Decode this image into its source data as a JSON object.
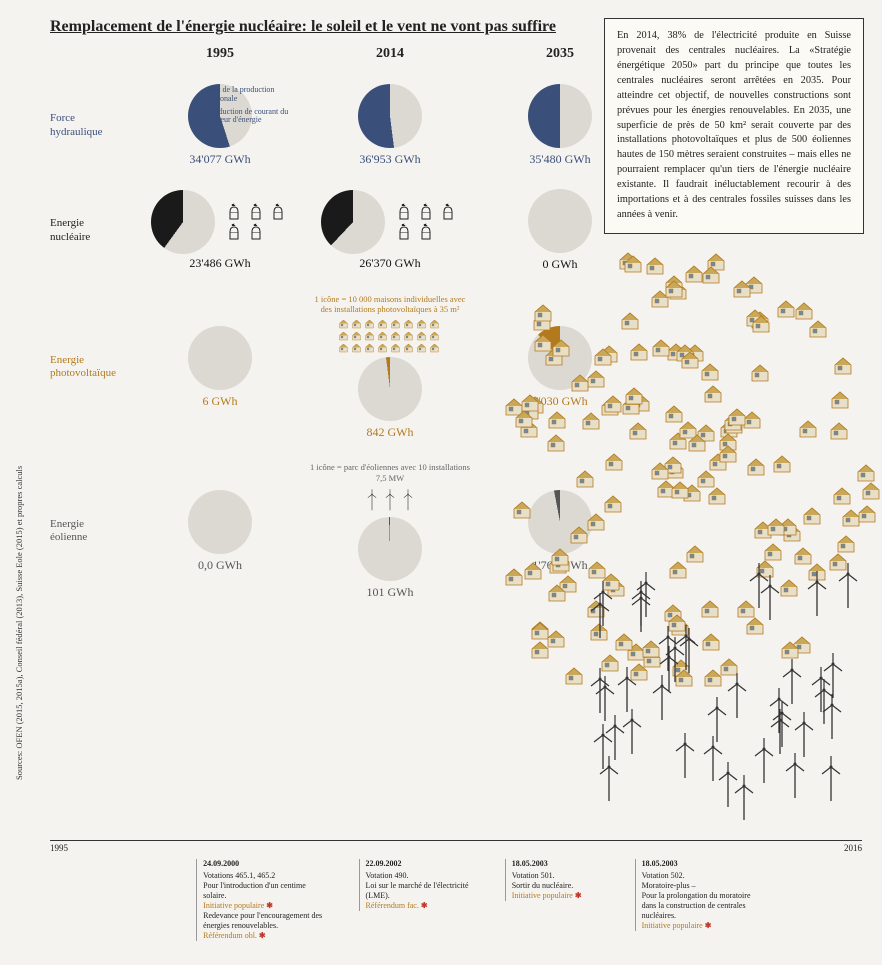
{
  "title": "Remplacement de l'énergie nucléaire: le soleil et le vent ne vont pas suffire",
  "textbox": "En 2014, 38% de l'électricité produite en Suisse provenait des centrales nucléaires. La «Stratégie énergétique 2050» part du principe que toutes les centrales nucléaires seront arrêtées en 2035. Pour atteindre cet objectif, de nouvelles constructions sont prévues pour les énergies renouvelables. En 2035, une superficie de près de 50 km² serait couverte par des installations photovoltaïques et plus de 500 éoliennes hautes de 150 mètres seraient construites – mais elles ne pourraient remplacer qu'un tiers de l'énergie nucléaire existante. Il faudrait inéluctablement recourir à des importations et à des centrales fossiles suisses dans les années à venir.",
  "years": [
    "1995",
    "2014",
    "2035"
  ],
  "colors": {
    "bg_grey": "#dcd9d2",
    "hydro": "#3a4f7a",
    "nuke": "#1a1a1a",
    "pv": "#b37a1d",
    "wind": "#555555",
    "page_bg": "#f5f3ef"
  },
  "rows": {
    "hydro": {
      "label": "Force\nhydraulique",
      "legend1": "part de la production nationale",
      "legend2": "production de courant du secteur d'énergie",
      "cells": [
        {
          "value": "34'077 GWh",
          "pct": 55
        },
        {
          "value": "36'953 GWh",
          "pct": 52
        },
        {
          "value": "35'480 GWh",
          "pct": 50
        }
      ]
    },
    "nuke": {
      "label": "Energie\nnucléaire",
      "cells": [
        {
          "value": "23'486 GWh",
          "pct": 40,
          "plants": 5
        },
        {
          "value": "26'370 GWh",
          "pct": 38,
          "plants": 5
        },
        {
          "value": "0 GWh",
          "pct": 0,
          "plants": 0
        }
      ]
    },
    "pv": {
      "label": "Energie\nphotovoltaïque",
      "note": "1 icône = 10 000 maisons individuelles avec des installations photovoltaïques à 35 m²",
      "cells": [
        {
          "value": "6 GWh",
          "pct": 0.1
        },
        {
          "value": "842 GWh",
          "pct": 2
        },
        {
          "value": "7'030 GWh",
          "pct": 12
        }
      ]
    },
    "wind": {
      "label": "Energie\néolienne",
      "note": "1 icône = parc d'éoliennes avec 10 installations 7,5 MW",
      "cells": [
        {
          "value": "0,0 GWh",
          "pct": 0
        },
        {
          "value": "101 GWh",
          "pct": 0.5
        },
        {
          "value": "1'760 GWh",
          "pct": 3
        }
      ]
    }
  },
  "source": "Sources: OFEN (2015, 2015a), Conseil fédéral (2013), Suisse Eole (2015) et propres calculs",
  "timeline": {
    "start": "1995",
    "end": "2016",
    "events": [
      {
        "left_pct": 18,
        "date": "24.09.2000",
        "lines": [
          "Votations 465.1, 465.2",
          "Pour l'introduction d'un centime solaire.",
          "Initiative populaire ✱",
          "Redevance pour l'encouragement des énergies renouvelables.",
          "Référendum obl. ✱"
        ]
      },
      {
        "left_pct": 38,
        "date": "22.09.2002",
        "lines": [
          "Votation 490.",
          "Loi sur le marché de l'électricité (LME).",
          "Référendum fac. ✱"
        ]
      },
      {
        "left_pct": 56,
        "date": "18.05.2003",
        "lines": [
          "Votation 501.",
          "Sortir du nucléaire.",
          "Initiative populaire ✱"
        ]
      },
      {
        "left_pct": 72,
        "date": "18.05.2003",
        "lines": [
          "Votation 502.",
          "Moratoire-plus –",
          "Pour la prolongation du moratoire dans la construction de centrales nucléaires.",
          "Initiative populaire ✱"
        ]
      }
    ]
  }
}
